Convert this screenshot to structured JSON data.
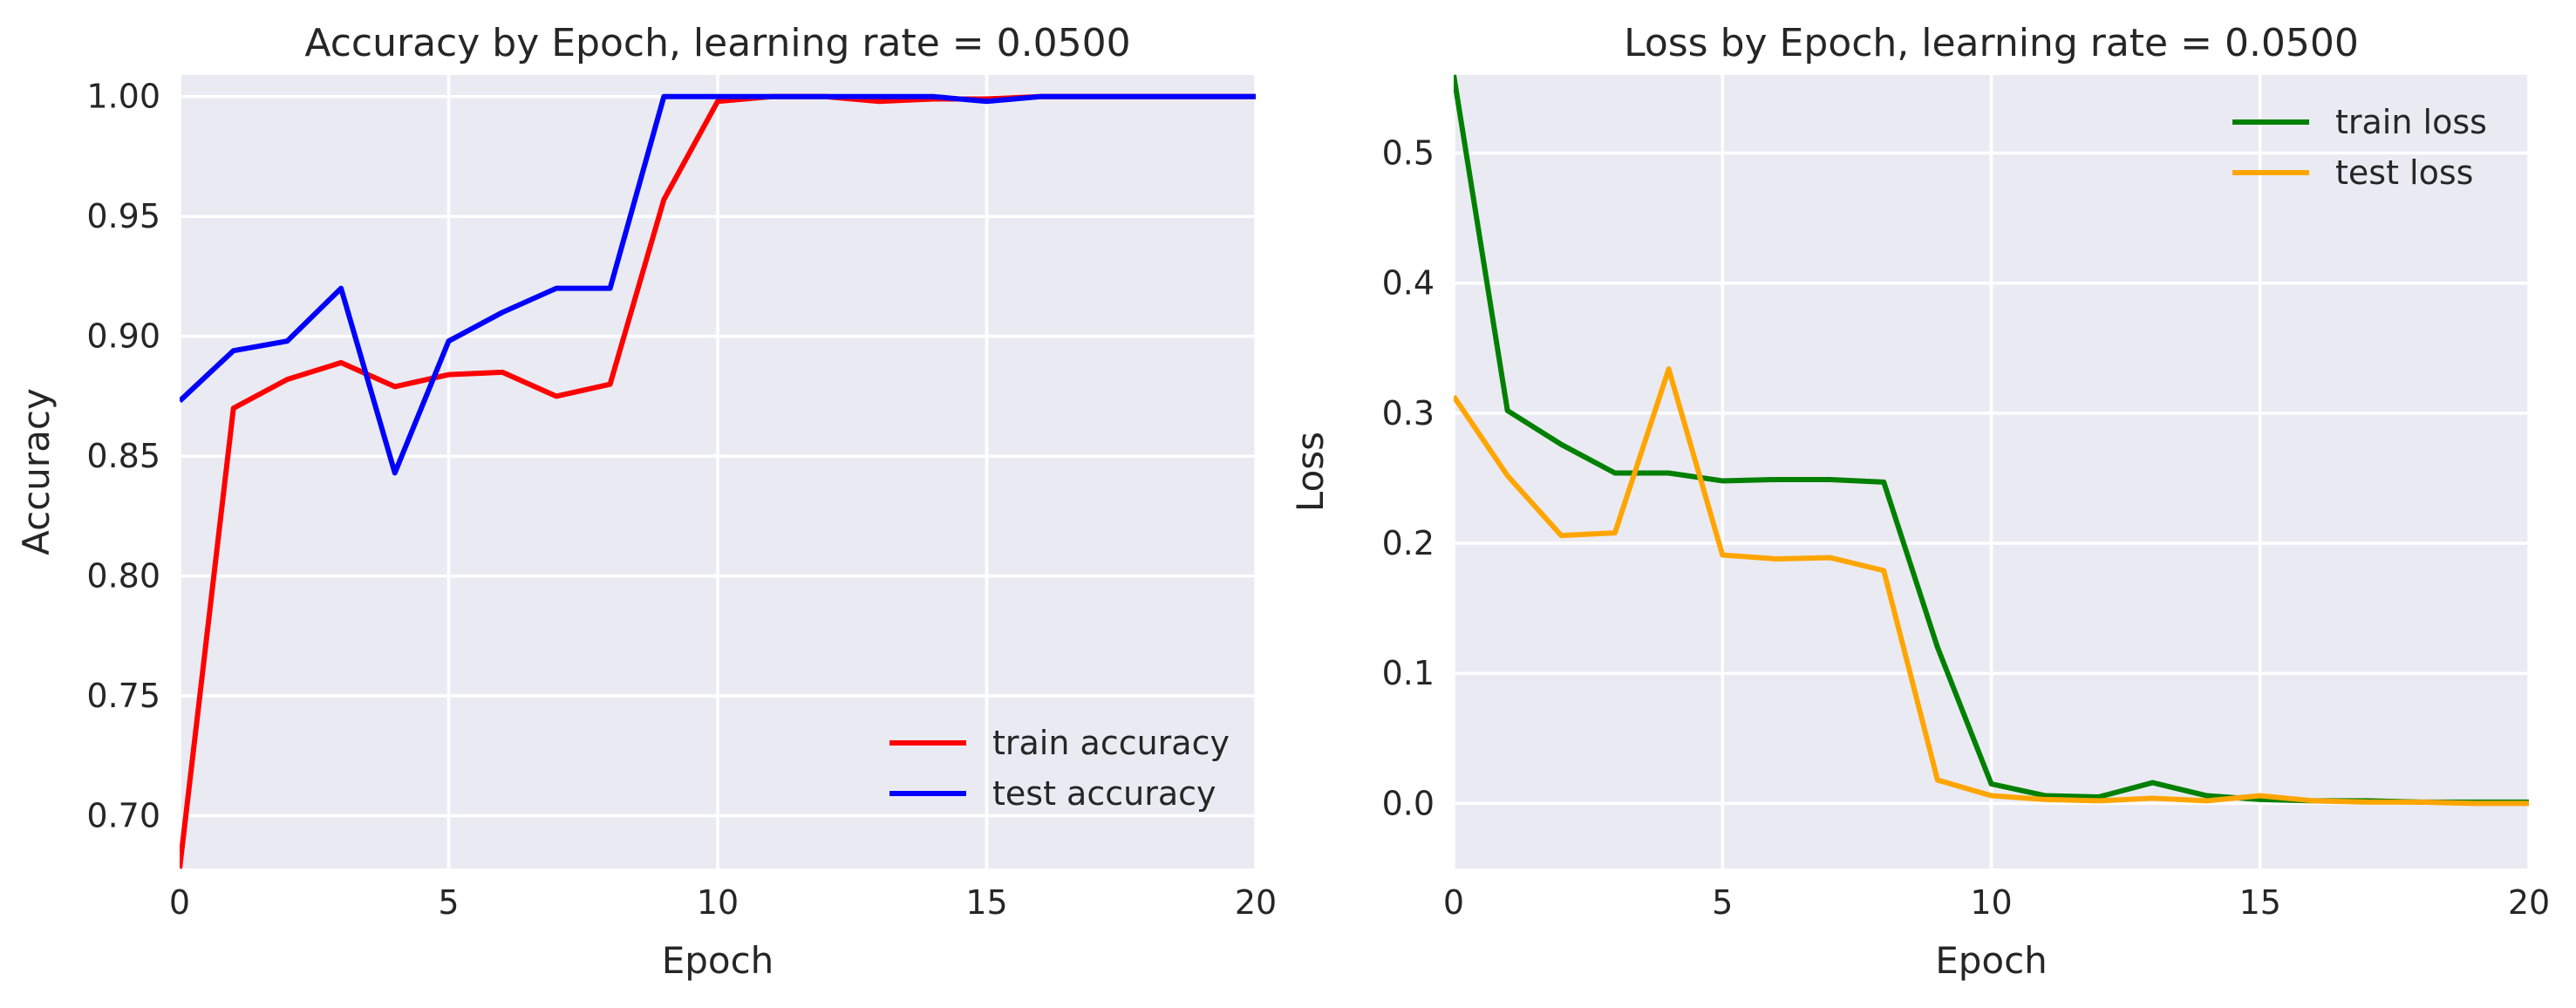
{
  "chart_data": [
    {
      "type": "line",
      "title": "Accuracy by Epoch, learning rate = 0.0500",
      "xlabel": "Epoch",
      "ylabel": "Accuracy",
      "xlim": [
        0,
        20
      ],
      "ylim": [
        0.678,
        1.009
      ],
      "xticks": [
        0,
        5,
        10,
        15,
        20
      ],
      "yticks": [
        0.7,
        0.75,
        0.8,
        0.85,
        0.9,
        0.95,
        1.0
      ],
      "ytick_decimals": 2,
      "grid": true,
      "legend": "lower-right",
      "x": [
        0,
        1,
        2,
        3,
        4,
        5,
        6,
        7,
        8,
        9,
        10,
        11,
        12,
        13,
        14,
        15,
        16,
        17,
        18,
        19,
        20
      ],
      "series": [
        {
          "name": "train accuracy",
          "color": "#ff0000",
          "values": [
            0.678,
            0.87,
            0.882,
            0.889,
            0.879,
            0.884,
            0.885,
            0.875,
            0.88,
            0.957,
            0.998,
            1.0,
            1.0,
            0.998,
            0.999,
            0.999,
            1.0,
            1.0,
            1.0,
            1.0,
            1.0
          ]
        },
        {
          "name": "test accuracy",
          "color": "#0000ff",
          "values": [
            0.873,
            0.894,
            0.898,
            0.92,
            0.843,
            0.898,
            0.91,
            0.92,
            0.92,
            1.0,
            1.0,
            1.0,
            1.0,
            1.0,
            1.0,
            0.998,
            1.0,
            1.0,
            1.0,
            1.0,
            1.0
          ]
        }
      ]
    },
    {
      "type": "line",
      "title": "Loss by Epoch, learning rate = 0.0500",
      "xlabel": "Epoch",
      "ylabel": "Loss",
      "xlim": [
        0,
        20
      ],
      "ylim": [
        -0.05,
        0.56
      ],
      "xticks": [
        0,
        5,
        10,
        15,
        20
      ],
      "yticks": [
        0.0,
        0.1,
        0.2,
        0.3,
        0.4,
        0.5
      ],
      "ytick_decimals": 1,
      "grid": true,
      "legend": "upper-right",
      "x": [
        0,
        1,
        2,
        3,
        4,
        5,
        6,
        7,
        8,
        9,
        10,
        11,
        12,
        13,
        14,
        15,
        16,
        17,
        18,
        19,
        20
      ],
      "series": [
        {
          "name": "train loss",
          "color": "#008000",
          "values": [
            0.56,
            0.302,
            0.276,
            0.254,
            0.254,
            0.248,
            0.249,
            0.249,
            0.247,
            0.12,
            0.015,
            0.006,
            0.005,
            0.016,
            0.006,
            0.003,
            0.002,
            0.002,
            0.001,
            0.001,
            0.001
          ]
        },
        {
          "name": "test loss",
          "color": "#ffa500",
          "values": [
            0.313,
            0.252,
            0.206,
            0.208,
            0.334,
            0.191,
            0.188,
            0.189,
            0.179,
            0.018,
            0.006,
            0.003,
            0.002,
            0.004,
            0.002,
            0.006,
            0.002,
            0.001,
            0.001,
            0.0,
            0.0
          ]
        }
      ]
    }
  ]
}
